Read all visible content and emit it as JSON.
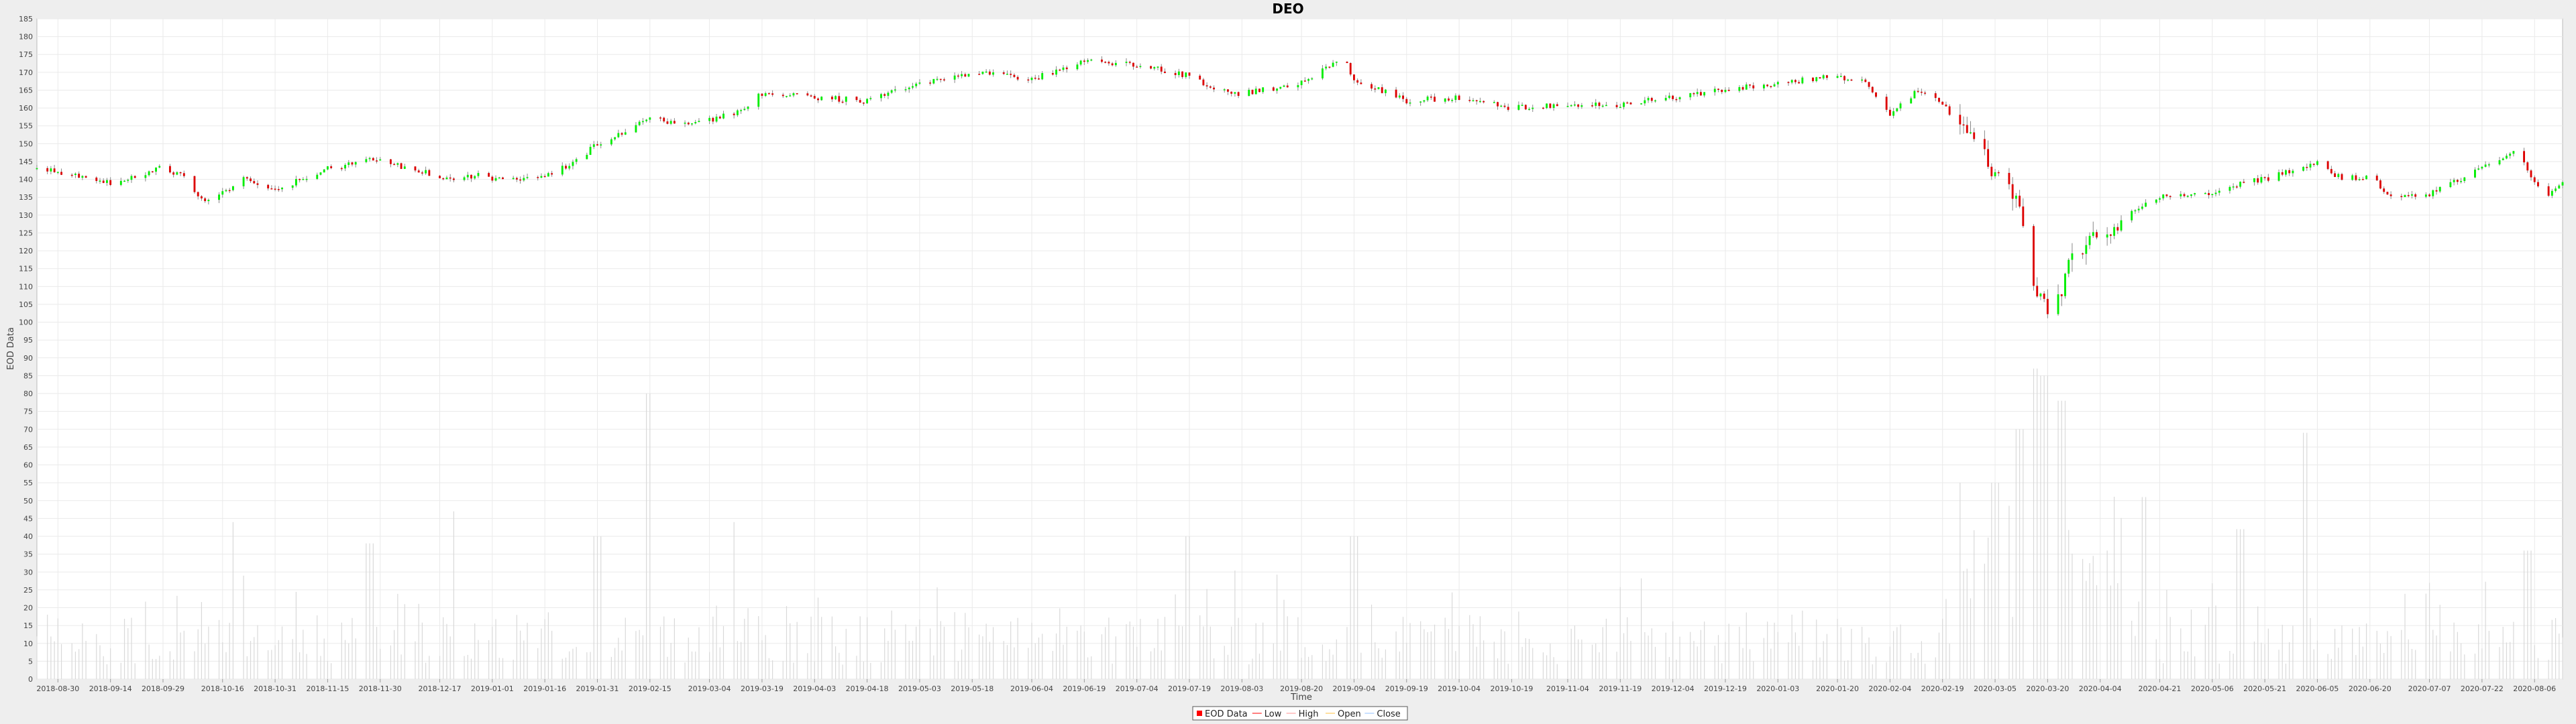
{
  "chart_data": {
    "type": "candlestick",
    "title": "DEO",
    "xlabel": "Time",
    "ylabel": "EOD Data",
    "ylim": [
      0,
      185
    ],
    "ytick_step": 5,
    "date_range": [
      "2018-08-24",
      "2020-08-14"
    ],
    "x_ticks": [
      "2018-08-30",
      "2018-09-14",
      "2018-09-29",
      "2018-10-16",
      "2018-10-31",
      "2018-11-15",
      "2018-11-30",
      "2018-12-17",
      "2019-01-01",
      "2019-01-16",
      "2019-01-31",
      "2019-02-15",
      "2019-03-04",
      "2019-03-19",
      "2019-04-03",
      "2019-04-18",
      "2019-05-03",
      "2019-05-18",
      "2019-06-04",
      "2019-06-19",
      "2019-07-04",
      "2019-07-19",
      "2019-08-03",
      "2019-08-20",
      "2019-09-04",
      "2019-09-19",
      "2019-10-04",
      "2019-10-19",
      "2019-11-04",
      "2019-11-19",
      "2019-12-04",
      "2019-12-19",
      "2020-01-03",
      "2020-01-20",
      "2020-02-04",
      "2020-02-19",
      "2020-03-05",
      "2020-03-20",
      "2020-04-04",
      "2020-04-21",
      "2020-05-06",
      "2020-05-21",
      "2020-06-05",
      "2020-06-20",
      "2020-07-07",
      "2020-07-22",
      "2020-08-06"
    ],
    "price_anchors": [
      [
        "2018-08-24",
        143
      ],
      [
        "2018-09-05",
        141
      ],
      [
        "2018-09-14",
        139
      ],
      [
        "2018-09-28",
        143
      ],
      [
        "2018-10-05",
        141
      ],
      [
        "2018-10-10",
        134
      ],
      [
        "2018-10-16",
        136
      ],
      [
        "2018-10-22",
        140
      ],
      [
        "2018-10-31",
        137
      ],
      [
        "2018-11-15",
        143
      ],
      [
        "2018-11-30",
        146
      ],
      [
        "2018-12-05",
        144
      ],
      [
        "2018-12-20",
        140
      ],
      [
        "2018-12-28",
        141
      ],
      [
        "2019-01-04",
        140
      ],
      [
        "2019-01-16",
        141
      ],
      [
        "2019-01-25",
        145
      ],
      [
        "2019-01-31",
        150
      ],
      [
        "2019-02-15",
        157
      ],
      [
        "2019-02-27",
        155
      ],
      [
        "2019-03-12",
        159
      ],
      [
        "2019-03-19",
        164
      ],
      [
        "2019-04-03",
        163
      ],
      [
        "2019-04-18",
        162
      ],
      [
        "2019-05-03",
        167
      ],
      [
        "2019-05-18",
        170
      ],
      [
        "2019-06-04",
        168
      ],
      [
        "2019-06-19",
        173
      ],
      [
        "2019-07-04",
        172
      ],
      [
        "2019-07-19",
        169
      ],
      [
        "2019-07-26",
        165
      ],
      [
        "2019-08-03",
        164
      ],
      [
        "2019-08-20",
        167
      ],
      [
        "2019-09-01",
        174
      ],
      [
        "2019-09-04",
        168
      ],
      [
        "2019-09-19",
        162
      ],
      [
        "2019-10-04",
        163
      ],
      [
        "2019-10-19",
        160
      ],
      [
        "2019-11-04",
        161
      ],
      [
        "2019-11-19",
        161
      ],
      [
        "2019-12-04",
        163
      ],
      [
        "2019-12-19",
        165
      ],
      [
        "2020-01-03",
        167
      ],
      [
        "2020-01-20",
        169
      ],
      [
        "2020-01-28",
        167
      ],
      [
        "2020-02-04",
        158
      ],
      [
        "2020-02-12",
        165
      ],
      [
        "2020-02-19",
        161
      ],
      [
        "2020-02-26",
        152
      ],
      [
        "2020-03-05",
        142
      ],
      [
        "2020-03-12",
        132
      ],
      [
        "2020-03-16",
        112
      ],
      [
        "2020-03-20",
        103
      ],
      [
        "2020-03-24",
        110
      ],
      [
        "2020-03-27",
        120
      ],
      [
        "2020-04-04",
        125
      ],
      [
        "2020-04-14",
        131
      ],
      [
        "2020-04-21",
        135
      ],
      [
        "2020-05-06",
        136
      ],
      [
        "2020-05-14",
        139
      ],
      [
        "2020-05-21",
        140
      ],
      [
        "2020-06-05",
        145
      ],
      [
        "2020-06-12",
        140
      ],
      [
        "2020-06-20",
        141
      ],
      [
        "2020-06-26",
        135
      ],
      [
        "2020-07-07",
        136
      ],
      [
        "2020-07-22",
        143
      ],
      [
        "2020-08-01",
        148
      ],
      [
        "2020-08-06",
        139
      ],
      [
        "2020-08-10",
        136
      ],
      [
        "2020-08-14",
        139
      ]
    ],
    "volume_spikes": [
      [
        "2018-10-20",
        44
      ],
      [
        "2018-11-27",
        38
      ],
      [
        "2018-12-22",
        47
      ],
      [
        "2019-01-31",
        40
      ],
      [
        "2019-02-15",
        80
      ],
      [
        "2019-03-10",
        44
      ],
      [
        "2019-07-19",
        40
      ],
      [
        "2019-09-04",
        40
      ],
      [
        "2020-03-05",
        55
      ],
      [
        "2020-03-12",
        70
      ],
      [
        "2020-03-16",
        87
      ],
      [
        "2020-03-19",
        85
      ],
      [
        "2020-03-24",
        78
      ],
      [
        "2020-04-17",
        51
      ],
      [
        "2020-05-14",
        42
      ],
      [
        "2020-06-01",
        69
      ],
      [
        "2020-08-04",
        36
      ]
    ],
    "legend": [
      {
        "name": "EOD Data",
        "color": "#ff0000"
      },
      {
        "name": "Low",
        "color": "#ff8080"
      },
      {
        "name": "High",
        "color": "#ffc8c8"
      },
      {
        "name": "Open",
        "color": "#ffe0a0"
      },
      {
        "name": "Close",
        "color": "#c8e0ff"
      }
    ],
    "colors": {
      "up": "#00ee00",
      "down": "#dd0000",
      "wick": "#888888",
      "volume": "#d9d9d9",
      "grid": "#eaeaea"
    }
  }
}
